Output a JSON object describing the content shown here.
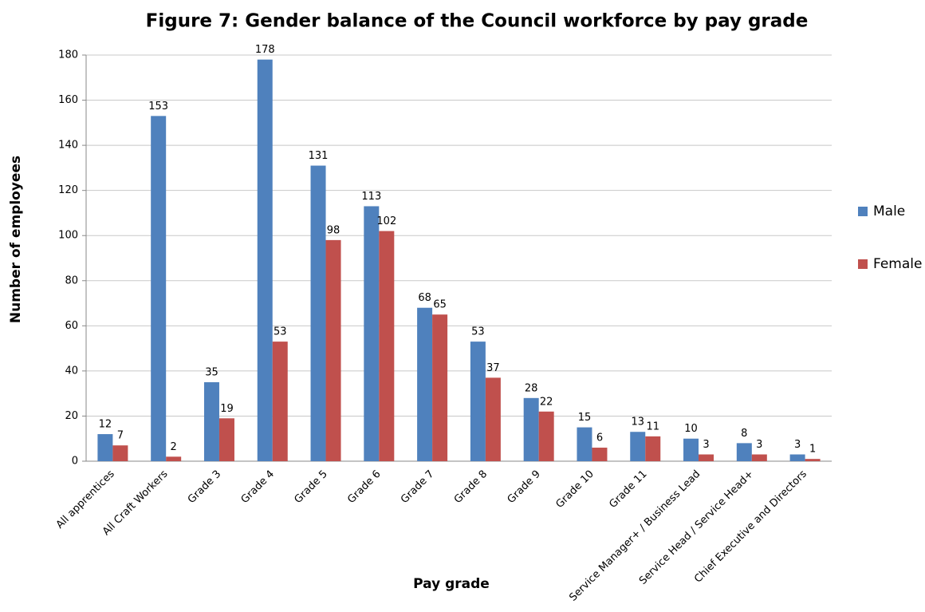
{
  "chart_data": {
    "type": "bar",
    "title": "Figure 7: Gender balance of the Council workforce by pay grade",
    "x_label": "Pay grade",
    "y_label": "Number of employees",
    "categories": [
      "All apprentices",
      "All Craft Workers",
      "Grade 3",
      "Grade 4",
      "Grade 5",
      "Grade 6",
      "Grade 7",
      "Grade 8",
      "Grade 9",
      "Grade 10",
      "Grade 11",
      "Service Manager+ / Business Lead",
      "Service Head / Service Head+",
      "Chief Executive and Directors"
    ],
    "series": [
      {
        "name": "Male",
        "color": "#4f81bd",
        "values": [
          12,
          153,
          35,
          178,
          131,
          113,
          68,
          53,
          28,
          15,
          13,
          10,
          8,
          3
        ]
      },
      {
        "name": "Female",
        "color": "#c0504d",
        "values": [
          7,
          2,
          19,
          53,
          98,
          102,
          65,
          37,
          22,
          6,
          11,
          3,
          3,
          1
        ]
      }
    ],
    "ylim": [
      0,
      180
    ],
    "yticks": [
      0,
      20,
      40,
      60,
      80,
      100,
      120,
      140,
      160,
      180
    ],
    "grid": true,
    "legend": "right",
    "data_labels": true
  }
}
